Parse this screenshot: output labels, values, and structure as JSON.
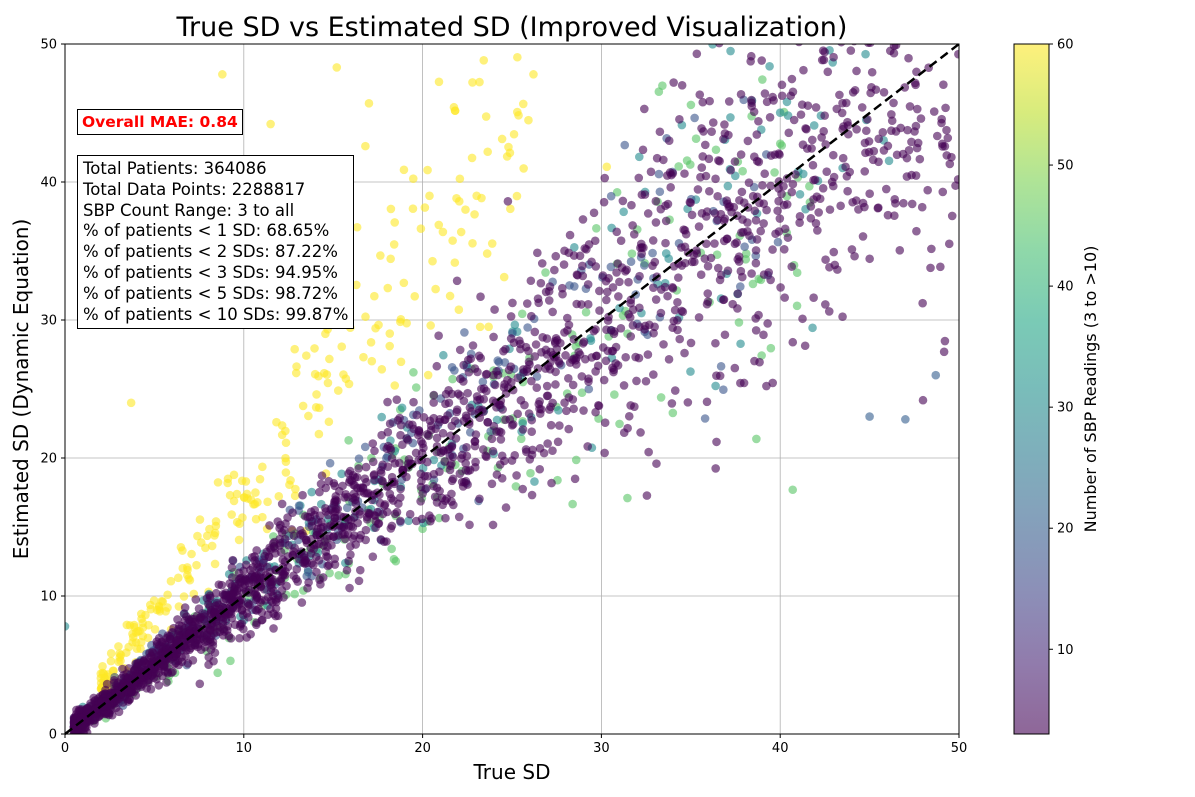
{
  "chart_data": {
    "type": "scatter",
    "title": "True SD vs Estimated SD (Improved Visualization)",
    "xlabel": "True SD",
    "ylabel": "Estimated SD (Dynamic Equation)",
    "xlim": [
      0,
      50
    ],
    "ylim": [
      0,
      50
    ],
    "x_ticks": [
      "0",
      "10",
      "20",
      "30",
      "40",
      "50"
    ],
    "y_ticks": [
      "0",
      "10",
      "20",
      "30",
      "40",
      "50"
    ],
    "grid": true,
    "reference_line": {
      "style": "dashed",
      "color": "#000000",
      "from": [
        0,
        0
      ],
      "to": [
        50,
        50
      ]
    },
    "colorbar": {
      "label": "Number of SBP Readings (3 to >10)",
      "range": [
        3,
        60
      ],
      "ticks": [
        "10",
        "20",
        "30",
        "40",
        "50",
        "60"
      ],
      "colormap": "viridis",
      "alpha": 0.6
    },
    "series_groups": [
      {
        "name": "",
        "color_value": 60,
        "center_ratio": 1.75,
        "ratio_spread": 0.5,
        "x_range": [
          2,
          26
        ],
        "n": 260
      },
      {
        "name": "",
        "color_value": 45,
        "center_ratio": 0.95,
        "ratio_spread": 0.35,
        "x_range": [
          1,
          42
        ],
        "n": 240
      },
      {
        "name": "",
        "color_value": 30,
        "center_ratio": 1.05,
        "ratio_spread": 0.3,
        "x_range": [
          0.5,
          48
        ],
        "n": 220
      },
      {
        "name": "",
        "color_value": 18,
        "center_ratio": 1.05,
        "ratio_spread": 0.3,
        "x_range": [
          0.5,
          40
        ],
        "n": 220
      },
      {
        "name": "",
        "color_value": 3,
        "center_ratio": 1.0,
        "ratio_spread": 0.3,
        "x_range": [
          0.5,
          50
        ],
        "n": 2200
      }
    ],
    "notable_points": [
      {
        "x": 8.8,
        "y": 47.8,
        "c": 60
      },
      {
        "x": 15.2,
        "y": 48.3,
        "c": 60
      },
      {
        "x": 26.2,
        "y": 47.8,
        "c": 60
      },
      {
        "x": 17.0,
        "y": 45.7,
        "c": 60
      },
      {
        "x": 11.5,
        "y": 44.2,
        "c": 60
      },
      {
        "x": 16.8,
        "y": 42.6,
        "c": 60
      },
      {
        "x": 30.3,
        "y": 41.1,
        "c": 60
      },
      {
        "x": 41.3,
        "y": 48.1,
        "c": 3
      },
      {
        "x": 48.7,
        "y": 26.0,
        "c": 20
      },
      {
        "x": 47.0,
        "y": 22.8,
        "c": 20
      },
      {
        "x": 45.0,
        "y": 23.0,
        "c": 20
      },
      {
        "x": 40.7,
        "y": 17.7,
        "c": 45
      },
      {
        "x": 0.0,
        "y": 7.8,
        "c": 30
      },
      {
        "x": 3.7,
        "y": 24.0,
        "c": 60
      }
    ]
  },
  "annotations": {
    "mae": "Overall MAE: 0.84",
    "stats": [
      "Total Patients: 364086",
      "Total Data Points: 2288817",
      "SBP Count Range: 3 to all",
      "% of patients < 1 SD: 68.65%",
      "% of patients < 2 SDs: 87.22%",
      "% of patients < 3 SDs: 94.95%",
      "% of patients < 5 SDs: 98.72%",
      "% of patients < 10 SDs: 99.87%"
    ]
  }
}
